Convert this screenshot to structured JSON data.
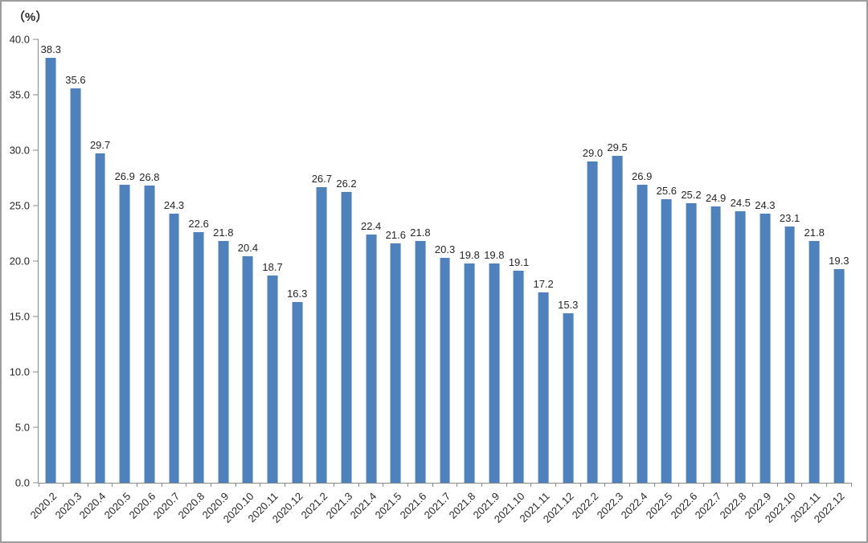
{
  "chart_data": {
    "type": "bar",
    "title": "",
    "unit_label": "（%）",
    "xlabel": "",
    "ylabel": "（%）",
    "ylim": [
      0,
      40
    ],
    "ytick_step": 5,
    "yticks": [
      "0.0",
      "5.0",
      "10.0",
      "15.0",
      "20.0",
      "25.0",
      "30.0",
      "35.0",
      "40.0"
    ],
    "grid": "off",
    "legend_position": "none",
    "bar_color": "#4F81BD",
    "axis_color": "#898989",
    "text_color": "#262626",
    "categories": [
      "2020.2",
      "2020.3",
      "2020.4",
      "2020.5",
      "2020.6",
      "2020.7",
      "2020.8",
      "2020.9",
      "2020.10",
      "2020.11",
      "2020.12",
      "2021.2",
      "2021.3",
      "2021.4",
      "2021.5",
      "2021.6",
      "2021.7",
      "2021.8",
      "2021.9",
      "2021.10",
      "2021.11",
      "2021.12",
      "2022.2",
      "2022.3",
      "2022.4",
      "2022.5",
      "2022.6",
      "2022.7",
      "2022.8",
      "2022.9",
      "2022.10",
      "2022.11",
      "2022.12"
    ],
    "values": [
      38.3,
      35.6,
      29.7,
      26.9,
      26.8,
      24.3,
      22.6,
      21.8,
      20.4,
      18.7,
      16.3,
      26.7,
      26.2,
      22.4,
      21.6,
      21.8,
      20.3,
      19.8,
      19.8,
      19.1,
      17.2,
      15.3,
      29.0,
      29.5,
      26.9,
      25.6,
      25.2,
      24.9,
      24.5,
      24.3,
      23.1,
      21.8,
      19.3
    ],
    "value_labels": [
      "38.3",
      "35.6",
      "29.7",
      "26.9",
      "26.8",
      "24.3",
      "22.6",
      "21.8",
      "20.4",
      "18.7",
      "16.3",
      "26.7",
      "26.2",
      "22.4",
      "21.6",
      "21.8",
      "20.3",
      "19.8",
      "19.8",
      "19.1",
      "17.2",
      "15.3",
      "29.0",
      "29.5",
      "26.9",
      "25.6",
      "25.2",
      "24.9",
      "24.5",
      "24.3",
      "23.1",
      "21.8",
      "19.3"
    ]
  }
}
